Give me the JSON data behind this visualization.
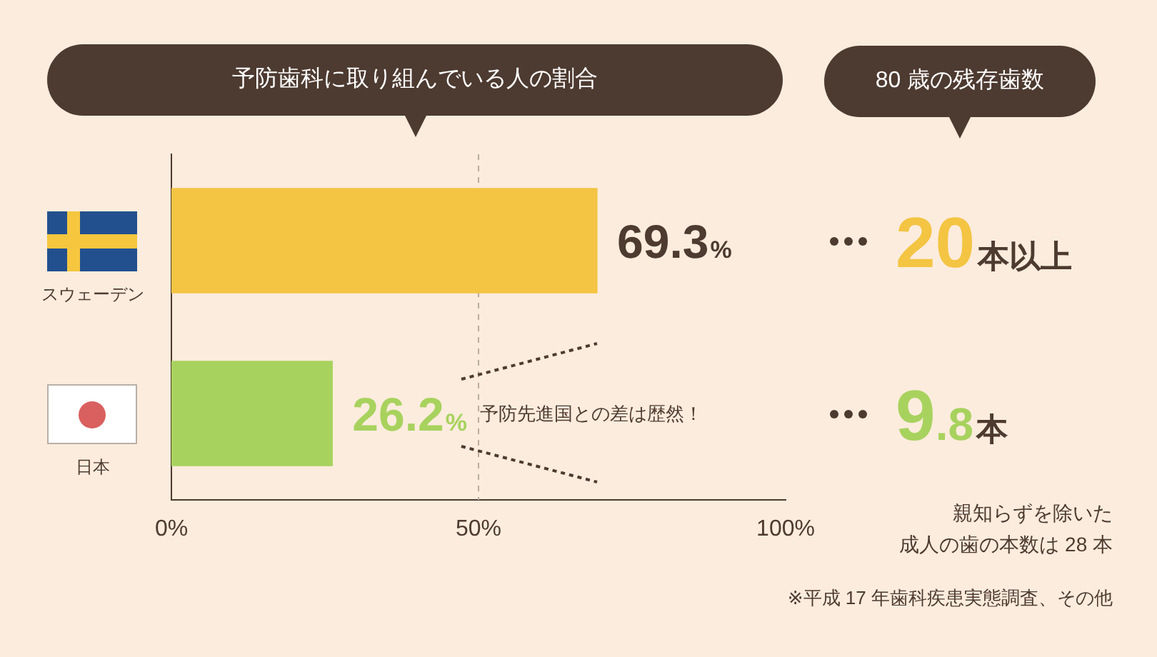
{
  "chart_data": {
    "type": "bar",
    "orientation": "horizontal",
    "title": "予防歯科に取り組んでいる人の割合",
    "categories": [
      "スウェーデン",
      "日本"
    ],
    "values": [
      69.3,
      26.2
    ],
    "colors": [
      "#f4c443",
      "#a8d25e"
    ],
    "value_labels": [
      "69.3%",
      "26.2%"
    ],
    "xlim": [
      0,
      100
    ],
    "xticks": [
      {
        "value": 0,
        "label": "0%"
      },
      {
        "value": 50,
        "label": "50%"
      },
      {
        "value": 100,
        "label": "100%"
      }
    ],
    "ref_lines": [
      {
        "axis": "x",
        "value": 50,
        "color": "#b9aca2",
        "line_style": "dashed"
      }
    ],
    "annotations": [
      "予防先進国との差は歴然！",
      "80 歳の残存歯数",
      "20本以上",
      "9.8本",
      "親知らずを除いた",
      "成人の歯の本数は 28 本",
      "※平成 17 年歯科疾患実態調査、その他"
    ]
  }
}
